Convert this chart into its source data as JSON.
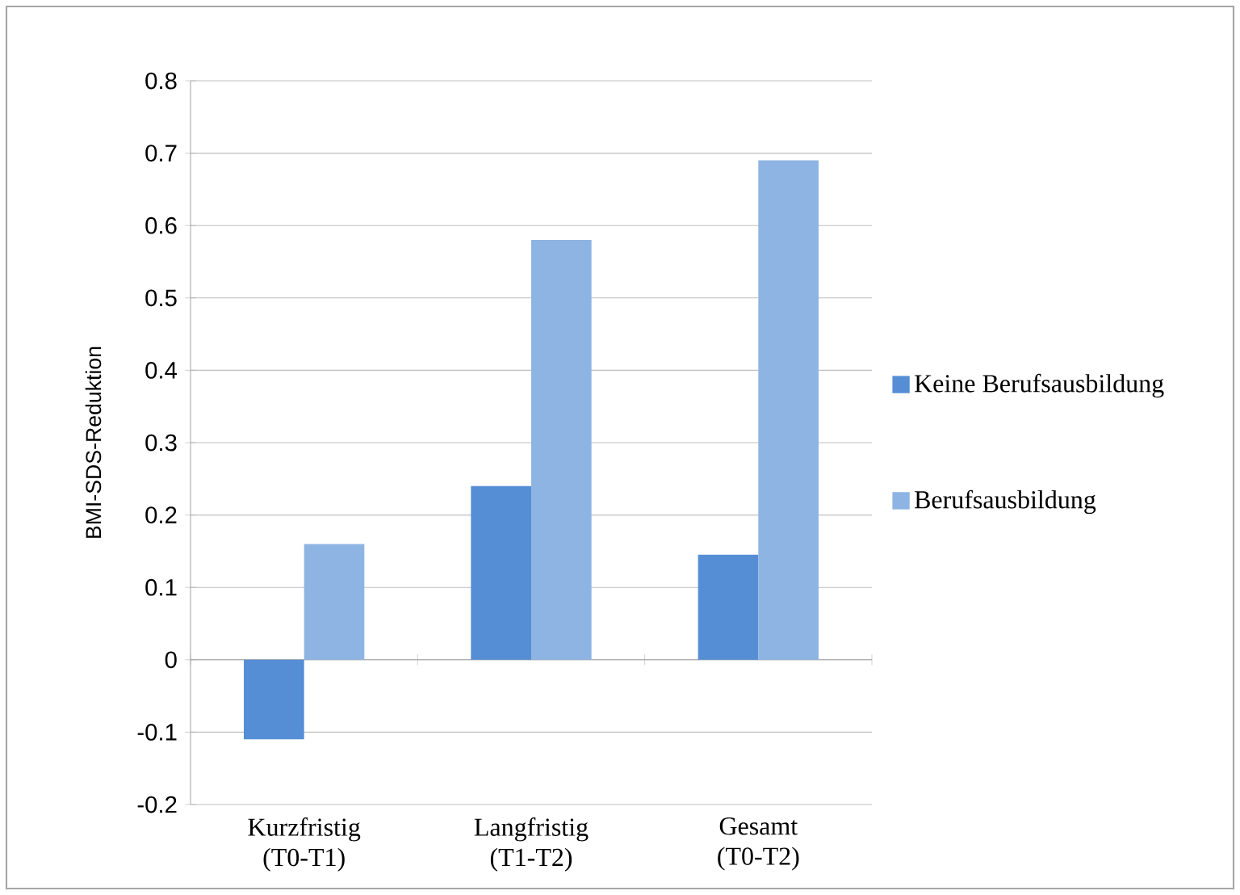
{
  "chart_data": {
    "type": "bar",
    "ylabel": "BMI-SDS-Reduktion",
    "categories": [
      "Kurzfristig (T0-T1)",
      "Langfristig (T1-T2)",
      "Gesamt (T0-T2)"
    ],
    "series": [
      {
        "name": "Keine Berufsausbildung",
        "color": "#558ed5",
        "values": [
          -0.11,
          0.24,
          0.145
        ]
      },
      {
        "name": "Berufsausbildung",
        "color": "#8eb4e3",
        "values": [
          0.16,
          0.58,
          0.69
        ]
      }
    ],
    "ylim": [
      -0.2,
      0.8
    ],
    "yticks": [
      -0.2,
      -0.1,
      0,
      0.1,
      0.2,
      0.3,
      0.4,
      0.5,
      0.6,
      0.7,
      0.8
    ],
    "grid": "y",
    "legend": "right"
  }
}
